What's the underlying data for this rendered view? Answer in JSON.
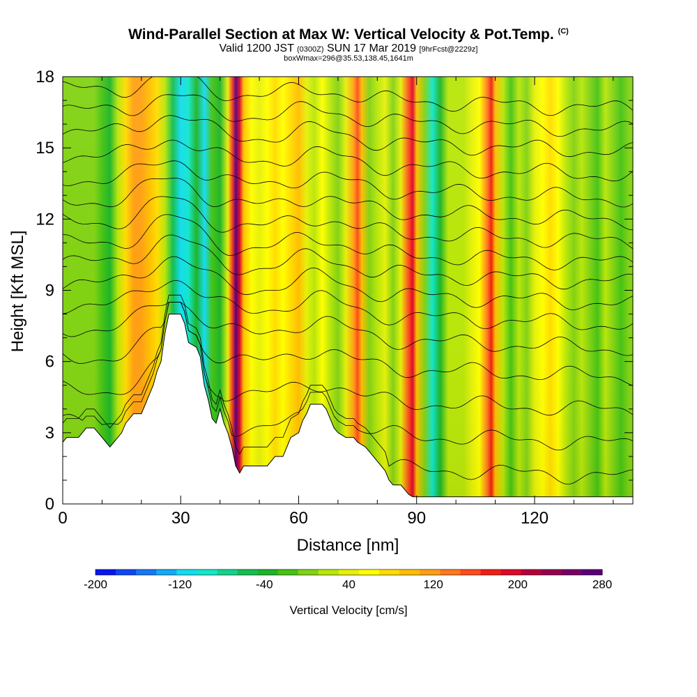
{
  "header": {
    "title": "Wind-Parallel Section at Max W: Vertical Velocity & Pot.Temp.",
    "title_sup": "(C)",
    "subtitle_a": "Valid 1200 JST",
    "subtitle_b": "(0300Z)",
    "subtitle_c": "SUN 17 Mar 2019",
    "subtitle_d": "[9hrFcst@2229z]",
    "note": "boxWmax=296@35.53,138.45,1641m"
  },
  "chart_data": {
    "type": "heatmap",
    "xlabel": "Distance [nm]",
    "ylabel": "Height [Kft MSL]",
    "xlim": [
      0,
      145
    ],
    "ylim": [
      0,
      18
    ],
    "x_ticks": [
      0,
      30,
      60,
      90,
      120
    ],
    "y_ticks": [
      0,
      3,
      6,
      9,
      12,
      15,
      18
    ],
    "colorbar": {
      "label": "Vertical Velocity [cm/s]",
      "range": [
        -200,
        280
      ],
      "tick_labels": [
        -200,
        -120,
        -40,
        40,
        120,
        200,
        280
      ],
      "colors": [
        "#0a14f0",
        "#0f46f5",
        "#1478f5",
        "#14aaf5",
        "#14dcf0",
        "#14e6c8",
        "#14d28c",
        "#14be50",
        "#1eb428",
        "#46c314",
        "#82d214",
        "#b9e60a",
        "#e6f00a",
        "#ffff00",
        "#ffdc00",
        "#ffbe00",
        "#ffa014",
        "#ff781e",
        "#ff4b1e",
        "#f01e14",
        "#dc0a28",
        "#b4003c",
        "#960050",
        "#780064",
        "#5a0078"
      ]
    },
    "columns": [
      {
        "x": 0,
        "w": 0
      },
      {
        "x": 2,
        "w": 8
      },
      {
        "x": 4,
        "w": 10
      },
      {
        "x": 6,
        "w": 8
      },
      {
        "x": 8,
        "w": 0
      },
      {
        "x": 10,
        "w": -20
      },
      {
        "x": 12,
        "w": -30
      },
      {
        "x": 14,
        "w": 20
      },
      {
        "x": 16,
        "w": 70
      },
      {
        "x": 18,
        "w": 115
      },
      {
        "x": 20,
        "w": 125
      },
      {
        "x": 22,
        "w": 100
      },
      {
        "x": 24,
        "w": 70
      },
      {
        "x": 26,
        "w": 30
      },
      {
        "x": 28,
        "w": -50
      },
      {
        "x": 30,
        "w": -110
      },
      {
        "x": 32,
        "w": -90
      },
      {
        "x": 34,
        "w": -40
      },
      {
        "x": 36,
        "w": -120
      },
      {
        "x": 38,
        "w": -20
      },
      {
        "x": 40,
        "w": -40
      },
      {
        "x": 42,
        "w": 40
      },
      {
        "x": 43,
        "w": 150
      },
      {
        "x": 44,
        "w": 280
      },
      {
        "x": 45,
        "w": 200
      },
      {
        "x": 46,
        "w": 90
      },
      {
        "x": 48,
        "w": 60
      },
      {
        "x": 50,
        "w": 40
      },
      {
        "x": 52,
        "w": 60
      },
      {
        "x": 54,
        "w": 70
      },
      {
        "x": 56,
        "w": 60
      },
      {
        "x": 58,
        "w": 80
      },
      {
        "x": 60,
        "w": 90
      },
      {
        "x": 62,
        "w": 40
      },
      {
        "x": 64,
        "w": 20
      },
      {
        "x": 66,
        "w": 50
      },
      {
        "x": 68,
        "w": 30
      },
      {
        "x": 70,
        "w": 10
      },
      {
        "x": 72,
        "w": 40
      },
      {
        "x": 74,
        "w": 120
      },
      {
        "x": 75,
        "w": 160
      },
      {
        "x": 76,
        "w": 90
      },
      {
        "x": 78,
        "w": 0
      },
      {
        "x": 80,
        "w": 20
      },
      {
        "x": 82,
        "w": 40
      },
      {
        "x": 84,
        "w": 10
      },
      {
        "x": 86,
        "w": 40
      },
      {
        "x": 88,
        "w": 150
      },
      {
        "x": 89,
        "w": 190
      },
      {
        "x": 90,
        "w": 100
      },
      {
        "x": 92,
        "w": 0
      },
      {
        "x": 94,
        "w": -100
      },
      {
        "x": 96,
        "w": -30
      },
      {
        "x": 98,
        "w": 20
      },
      {
        "x": 100,
        "w": 30
      },
      {
        "x": 102,
        "w": 20
      },
      {
        "x": 104,
        "w": 40
      },
      {
        "x": 106,
        "w": 50
      },
      {
        "x": 108,
        "w": 130
      },
      {
        "x": 109,
        "w": 170
      },
      {
        "x": 110,
        "w": 90
      },
      {
        "x": 112,
        "w": 20
      },
      {
        "x": 114,
        "w": -10
      },
      {
        "x": 116,
        "w": 30
      },
      {
        "x": 118,
        "w": 10
      },
      {
        "x": 120,
        "w": 40
      },
      {
        "x": 122,
        "w": 60
      },
      {
        "x": 124,
        "w": 70
      },
      {
        "x": 126,
        "w": 60
      },
      {
        "x": 128,
        "w": 30
      },
      {
        "x": 130,
        "w": 0
      },
      {
        "x": 132,
        "w": 20
      },
      {
        "x": 134,
        "w": 10
      },
      {
        "x": 136,
        "w": -10
      },
      {
        "x": 138,
        "w": 30
      },
      {
        "x": 140,
        "w": 10
      },
      {
        "x": 142,
        "w": -10
      },
      {
        "x": 144,
        "w": 0
      },
      {
        "x": 145,
        "w": 0
      }
    ],
    "terrain": [
      [
        0,
        2.6
      ],
      [
        1,
        2.8
      ],
      [
        4,
        2.8
      ],
      [
        6,
        3.2
      ],
      [
        8,
        3.2
      ],
      [
        10,
        2.8
      ],
      [
        11,
        2.6
      ],
      [
        12,
        2.4
      ],
      [
        13,
        2.6
      ],
      [
        14,
        2.8
      ],
      [
        15,
        3.0
      ],
      [
        16,
        3.4
      ],
      [
        17,
        3.6
      ],
      [
        18,
        3.8
      ],
      [
        20,
        3.8
      ],
      [
        21,
        4.2
      ],
      [
        22,
        4.6
      ],
      [
        23,
        5.0
      ],
      [
        24,
        5.6
      ],
      [
        25,
        6.0
      ],
      [
        26,
        7.2
      ],
      [
        27,
        8.0
      ],
      [
        30,
        8.0
      ],
      [
        31,
        7.6
      ],
      [
        32,
        6.8
      ],
      [
        34,
        6.6
      ],
      [
        35,
        6.2
      ],
      [
        36,
        5.0
      ],
      [
        37,
        4.4
      ],
      [
        38,
        3.6
      ],
      [
        39,
        3.4
      ],
      [
        40,
        4.0
      ],
      [
        41,
        3.4
      ],
      [
        42,
        3.0
      ],
      [
        43,
        2.4
      ],
      [
        44,
        1.6
      ],
      [
        45,
        1.3
      ],
      [
        46,
        1.6
      ],
      [
        52,
        1.6
      ],
      [
        53,
        1.8
      ],
      [
        54,
        2.0
      ],
      [
        56,
        2.0
      ],
      [
        57,
        2.4
      ],
      [
        58,
        2.8
      ],
      [
        60,
        3.0
      ],
      [
        61,
        3.5
      ],
      [
        62,
        3.8
      ],
      [
        63,
        4.2
      ],
      [
        66,
        4.2
      ],
      [
        67,
        4.0
      ],
      [
        68,
        3.6
      ],
      [
        69,
        3.2
      ],
      [
        70,
        3.0
      ],
      [
        72,
        2.8
      ],
      [
        74,
        2.8
      ],
      [
        75,
        2.6
      ],
      [
        77,
        2.4
      ],
      [
        78,
        2.2
      ],
      [
        79,
        2.0
      ],
      [
        80,
        1.8
      ],
      [
        81,
        1.6
      ],
      [
        82,
        1.4
      ],
      [
        83,
        1.0
      ],
      [
        84,
        0.8
      ],
      [
        86,
        0.8
      ],
      [
        87,
        0.6
      ],
      [
        88,
        0.4
      ],
      [
        89,
        0.3
      ],
      [
        145,
        0.3
      ]
    ],
    "theta_contours": [
      {
        "base": 2.0,
        "hump": 1.2
      },
      {
        "base": 3.4,
        "hump": 1.3
      },
      {
        "base": 4.8,
        "hump": 1.4
      },
      {
        "base": 6.2,
        "hump": 1.4
      },
      {
        "base": 7.4,
        "hump": 1.4
      },
      {
        "base": 8.4,
        "hump": 1.3
      },
      {
        "base": 9.3,
        "hump": 1.3
      },
      {
        "base": 10.2,
        "hump": 1.2
      },
      {
        "base": 11.0,
        "hump": 1.2
      },
      {
        "base": 11.9,
        "hump": 1.1
      },
      {
        "base": 12.8,
        "hump": 1.1
      },
      {
        "base": 13.7,
        "hump": 1.0
      },
      {
        "base": 14.7,
        "hump": 0.9
      },
      {
        "base": 15.7,
        "hump": 0.9
      },
      {
        "base": 16.6,
        "hump": 0.8
      },
      {
        "base": 17.5,
        "hump": 0.7
      }
    ]
  }
}
